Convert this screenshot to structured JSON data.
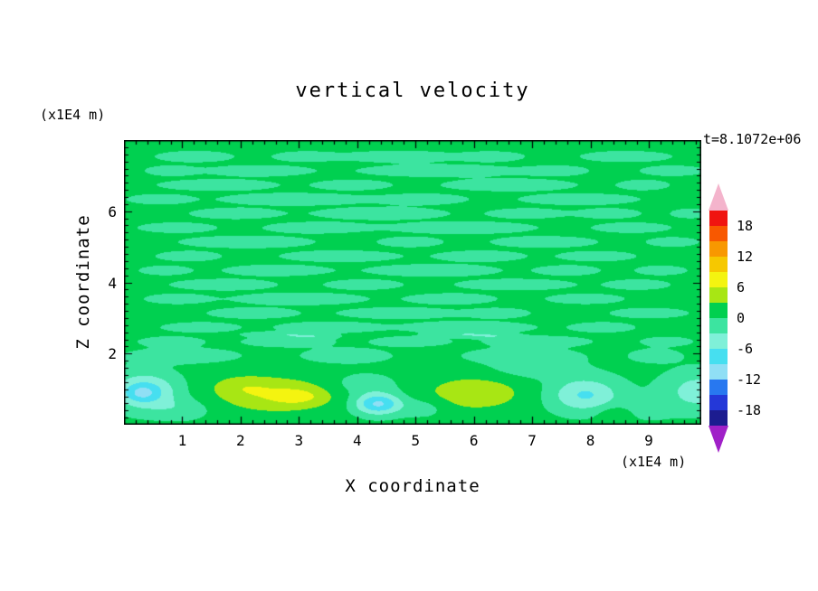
{
  "chart_data": {
    "type": "heatmap",
    "title": "vertical velocity",
    "time_label": "t=8.1072e+06",
    "xlabel": "X coordinate",
    "ylabel": "Z coordinate",
    "x_units": "(x1E4 m)",
    "z_units": "(x1E4 m)",
    "xlim": [
      0,
      9.9
    ],
    "zlim": [
      0,
      8.0
    ],
    "x_major_ticks": [
      1,
      2,
      3,
      4,
      5,
      6,
      7,
      8,
      9
    ],
    "y_major_ticks": [
      2,
      4,
      6
    ],
    "minor_tick_step_x": 0.2,
    "minor_tick_step_y": 0.2,
    "colorbar": {
      "band_min": -21,
      "band_max": 21,
      "band_step": 3,
      "labels": [
        18,
        12,
        6,
        0,
        -6,
        -12,
        -18
      ],
      "colors": [
        "#a020c8",
        "#1c1c90",
        "#2438d8",
        "#2878f0",
        "#90dff5",
        "#46dff0",
        "#7ff0d8",
        "#3ce4a0",
        "#00d050",
        "#a8e614",
        "#f4f410",
        "#f6c800",
        "#f89800",
        "#f85800",
        "#f01410",
        "#f4b4cc"
      ]
    },
    "field": {
      "background": 0.8,
      "blobs": [
        [
          0.35,
          0.95,
          0.55,
          0.5,
          -8.2
        ],
        [
          0.3,
          0.9,
          0.25,
          0.22,
          -3.2
        ],
        [
          1.0,
          0.45,
          0.5,
          0.3,
          -2.6
        ],
        [
          2.6,
          0.85,
          1.0,
          0.5,
          4.9
        ],
        [
          3.0,
          0.8,
          0.42,
          0.22,
          2.9
        ],
        [
          2.0,
          1.1,
          0.5,
          0.3,
          2.2
        ],
        [
          4.35,
          0.6,
          0.4,
          0.3,
          -10.5
        ],
        [
          4.1,
          1.15,
          0.55,
          0.3,
          -2.6
        ],
        [
          6.0,
          0.9,
          0.85,
          0.48,
          4.4
        ],
        [
          5.15,
          0.5,
          0.4,
          0.28,
          -2.4
        ],
        [
          7.9,
          0.85,
          0.6,
          0.48,
          -7.2
        ],
        [
          8.45,
          0.35,
          0.35,
          0.25,
          2.6
        ],
        [
          8.9,
          0.45,
          0.45,
          0.3,
          -2.6
        ],
        [
          9.85,
          0.95,
          0.6,
          0.55,
          -5.4
        ],
        [
          7.0,
          1.6,
          0.75,
          0.3,
          -2.6
        ]
      ],
      "streaks": [
        [
          1.2,
          7.55,
          0.6,
          0.14,
          -2.9
        ],
        [
          3.1,
          7.55,
          0.5,
          0.13,
          -2.9
        ],
        [
          4.7,
          7.55,
          0.9,
          0.14,
          -3.2
        ],
        [
          6.3,
          7.55,
          0.5,
          0.13,
          -2.9
        ],
        [
          8.6,
          7.55,
          0.7,
          0.14,
          -2.9
        ],
        [
          0.8,
          7.15,
          0.4,
          0.13,
          -2.9
        ],
        [
          2.3,
          7.15,
          0.8,
          0.14,
          -3.1
        ],
        [
          5.4,
          7.15,
          1.2,
          0.15,
          -3.2
        ],
        [
          7.4,
          7.15,
          0.5,
          0.13,
          -2.9
        ],
        [
          9.4,
          7.15,
          0.5,
          0.13,
          -2.9
        ],
        [
          1.6,
          6.75,
          0.9,
          0.14,
          -3.1
        ],
        [
          3.9,
          6.75,
          0.6,
          0.13,
          -2.9
        ],
        [
          6.6,
          6.75,
          1.0,
          0.15,
          -3.2
        ],
        [
          8.9,
          6.75,
          0.4,
          0.13,
          -2.9
        ],
        [
          0.6,
          6.35,
          0.5,
          0.13,
          -2.9
        ],
        [
          2.9,
          6.35,
          1.1,
          0.15,
          -3.2
        ],
        [
          5.1,
          6.35,
          0.7,
          0.14,
          -2.9
        ],
        [
          7.8,
          6.35,
          0.9,
          0.14,
          -3.1
        ],
        [
          1.9,
          5.95,
          0.7,
          0.14,
          -2.9
        ],
        [
          4.4,
          5.95,
          1.0,
          0.15,
          -3.2
        ],
        [
          6.9,
          5.95,
          0.6,
          0.13,
          -2.9
        ],
        [
          8.3,
          5.95,
          0.5,
          0.13,
          -2.9
        ],
        [
          9.7,
          5.95,
          0.3,
          0.12,
          -2.9
        ],
        [
          0.9,
          5.55,
          0.6,
          0.13,
          -2.9
        ],
        [
          3.3,
          5.55,
          0.8,
          0.14,
          -3.1
        ],
        [
          5.8,
          5.55,
          1.1,
          0.15,
          -3.2
        ],
        [
          8.7,
          5.55,
          0.6,
          0.13,
          -2.9
        ],
        [
          2.1,
          5.15,
          1.0,
          0.15,
          -3.2
        ],
        [
          4.9,
          5.15,
          0.5,
          0.13,
          -2.9
        ],
        [
          7.2,
          5.15,
          0.8,
          0.14,
          -3.1
        ],
        [
          9.4,
          5.15,
          0.4,
          0.12,
          -2.9
        ],
        [
          1.1,
          4.75,
          0.5,
          0.13,
          -2.9
        ],
        [
          3.7,
          4.75,
          0.9,
          0.14,
          -3.1
        ],
        [
          6.1,
          4.75,
          0.7,
          0.14,
          -2.9
        ],
        [
          8.1,
          4.75,
          0.6,
          0.13,
          -2.9
        ],
        [
          0.7,
          4.35,
          0.4,
          0.12,
          -2.9
        ],
        [
          2.6,
          4.35,
          0.8,
          0.14,
          -3.1
        ],
        [
          5.3,
          4.35,
          1.0,
          0.15,
          -3.2
        ],
        [
          7.6,
          4.35,
          0.5,
          0.13,
          -2.9
        ],
        [
          9.2,
          4.35,
          0.4,
          0.12,
          -2.9
        ],
        [
          1.7,
          3.95,
          0.8,
          0.14,
          -3.1
        ],
        [
          4.1,
          3.95,
          0.6,
          0.13,
          -2.9
        ],
        [
          6.7,
          3.95,
          0.9,
          0.14,
          -3.1
        ],
        [
          8.8,
          3.95,
          0.5,
          0.13,
          -2.9
        ],
        [
          0.9,
          3.55,
          0.5,
          0.13,
          -2.9
        ],
        [
          3.0,
          3.55,
          1.0,
          0.15,
          -3.2
        ],
        [
          5.6,
          3.55,
          0.7,
          0.14,
          -2.9
        ],
        [
          7.9,
          3.55,
          0.6,
          0.13,
          -2.9
        ],
        [
          2.2,
          3.15,
          0.7,
          0.14,
          -2.9
        ],
        [
          4.7,
          3.15,
          0.9,
          0.14,
          -3.1
        ],
        [
          6.4,
          3.15,
          0.5,
          0.13,
          -2.9
        ],
        [
          9.0,
          3.15,
          0.6,
          0.13,
          -2.9
        ],
        [
          1.3,
          2.75,
          0.6,
          0.13,
          -2.9
        ],
        [
          3.5,
          2.75,
          0.8,
          0.14,
          -3.1
        ],
        [
          5.9,
          2.75,
          1.0,
          0.15,
          -3.2
        ],
        [
          8.2,
          2.75,
          0.5,
          0.13,
          -2.9
        ],
        [
          0.8,
          2.35,
          0.5,
          0.13,
          -2.9
        ],
        [
          2.8,
          2.35,
          0.7,
          0.14,
          -2.9
        ],
        [
          4.9,
          2.35,
          0.6,
          0.13,
          -2.9
        ],
        [
          7.1,
          2.35,
          0.8,
          0.14,
          -3.1
        ],
        [
          9.3,
          2.35,
          0.4,
          0.12,
          -2.9
        ],
        [
          1.0,
          1.95,
          0.9,
          0.2,
          -2.9
        ],
        [
          3.8,
          1.95,
          0.7,
          0.2,
          -2.9
        ],
        [
          6.8,
          1.95,
          0.9,
          0.2,
          -2.9
        ],
        [
          9.1,
          1.95,
          0.4,
          0.18,
          -2.9
        ],
        [
          2.6,
          2.55,
          0.5,
          0.07,
          -2.9
        ],
        [
          3.2,
          2.5,
          0.4,
          0.07,
          -2.9
        ],
        [
          5.8,
          2.55,
          0.5,
          0.07,
          -2.9
        ],
        [
          6.3,
          2.5,
          0.4,
          0.07,
          -2.9
        ]
      ]
    }
  }
}
